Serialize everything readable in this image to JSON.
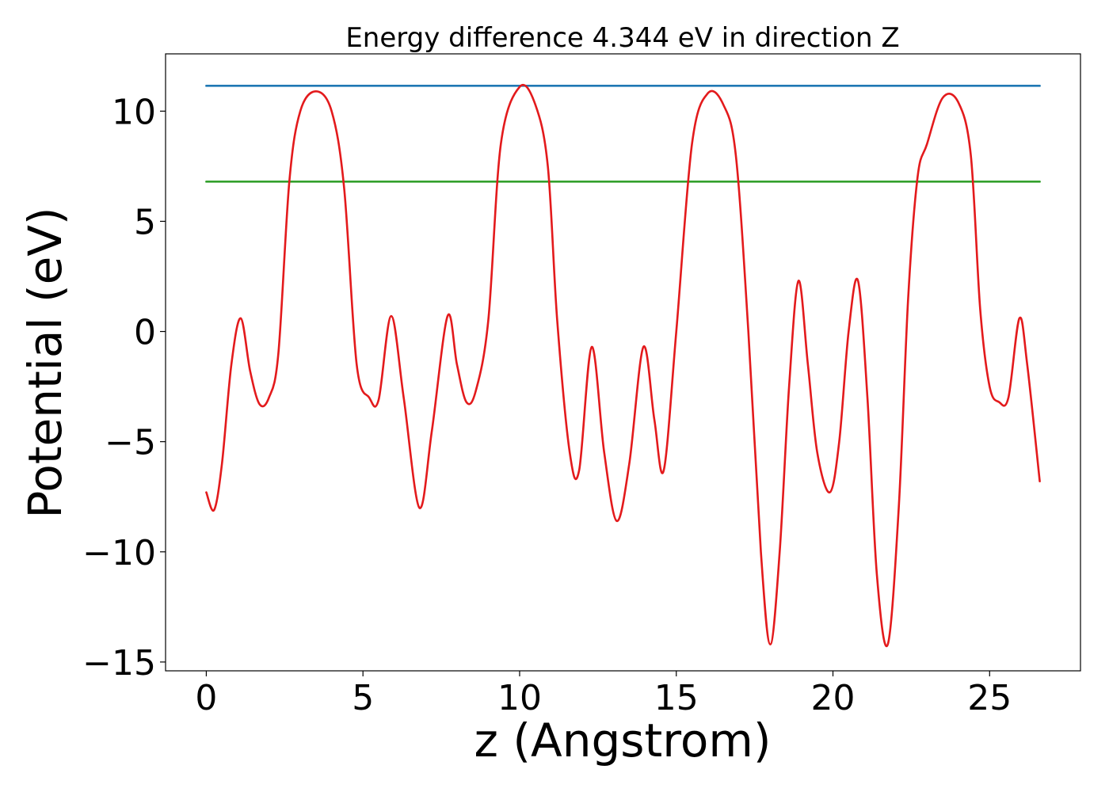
{
  "chart_data": {
    "type": "line",
    "title": "Energy difference 4.344 eV in direction Z",
    "xlabel": "z (Angstrom)",
    "ylabel": "Potential (eV)",
    "xlim": [
      -1.3,
      27.9
    ],
    "ylim": [
      -15.4,
      12.6
    ],
    "xticks": [
      0,
      5,
      10,
      15,
      20,
      25
    ],
    "yticks": [
      -15,
      -10,
      -5,
      0,
      5,
      10
    ],
    "xtick_labels": [
      "0",
      "5",
      "10",
      "15",
      "20",
      "25"
    ],
    "ytick_labels": [
      "−15",
      "−10",
      "−5",
      "0",
      "5",
      "10"
    ],
    "grid": false,
    "legend": "none",
    "colors": {
      "potential": "#e31a1c",
      "upper_level": "#1f78b4",
      "lower_level": "#33a02c"
    },
    "series": [
      {
        "color": "#e31a1c",
        "x": [
          0.0,
          0.25,
          0.5,
          0.8,
          1.1,
          1.4,
          1.7,
          2.0,
          2.3,
          2.65,
          3.0,
          3.5,
          4.0,
          4.4,
          4.8,
          5.2,
          5.5,
          5.9,
          6.3,
          6.8,
          7.2,
          7.7,
          8.0,
          8.3,
          8.6,
          9.0,
          9.4,
          10.0,
          10.5,
          10.9,
          11.2,
          11.6,
          11.9,
          12.3,
          12.7,
          13.1,
          13.5,
          13.95,
          14.3,
          14.6,
          15.0,
          15.5,
          16.0,
          16.5,
          16.9,
          17.3,
          17.7,
          18.0,
          18.3,
          18.6,
          18.9,
          19.2,
          19.5,
          19.9,
          20.2,
          20.5,
          20.8,
          21.1,
          21.4,
          21.75,
          22.1,
          22.4,
          22.7,
          23.0,
          23.5,
          24.0,
          24.4,
          24.7,
          25.0,
          25.3,
          25.6,
          25.95,
          26.2,
          26.6
        ],
        "values": [
          -7.3,
          -8.1,
          -6.0,
          -1.5,
          0.6,
          -1.8,
          -3.3,
          -3.0,
          -1.0,
          6.8,
          10.0,
          10.9,
          10.0,
          6.5,
          -1.5,
          -3.0,
          -3.1,
          0.7,
          -3.0,
          -8.0,
          -4.5,
          0.7,
          -1.5,
          -3.2,
          -2.7,
          0.5,
          8.5,
          11.1,
          10.3,
          7.5,
          0.5,
          -5.5,
          -6.3,
          -0.7,
          -5.5,
          -8.6,
          -6.0,
          -0.7,
          -4.0,
          -6.3,
          0.0,
          8.5,
          10.8,
          10.3,
          8.0,
          0.0,
          -10.0,
          -14.2,
          -10.0,
          -2.5,
          2.3,
          -1.5,
          -5.5,
          -7.3,
          -5.0,
          0.0,
          2.3,
          -3.0,
          -11.0,
          -14.2,
          -8.0,
          1.5,
          7.0,
          8.5,
          10.6,
          10.4,
          8.0,
          1.0,
          -2.5,
          -3.2,
          -3.0,
          0.6,
          -1.5,
          -6.8
        ]
      },
      {
        "color": "#1f78b4",
        "x": [
          0.0,
          26.6
        ],
        "values": [
          11.15,
          11.15
        ]
      },
      {
        "color": "#33a02c",
        "x": [
          0.0,
          26.6
        ],
        "values": [
          6.8,
          6.8
        ]
      }
    ]
  }
}
